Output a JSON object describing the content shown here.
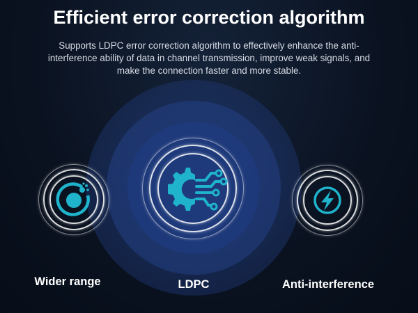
{
  "header": {
    "title": "Efficient error correction algorithm",
    "description": "Supports LDPC error correction algorithm to effectively enhance the anti-interference ability of data in channel transmission, improve weak signals, and make the connection faster and more stable."
  },
  "features": [
    {
      "label": "Wider range",
      "icon": "orbit-icon"
    },
    {
      "label": "LDPC",
      "icon": "gear-circuit-icon"
    },
    {
      "label": "Anti-interference",
      "icon": "lightning-icon"
    }
  ],
  "colors": {
    "accent": "#1fb3cc",
    "background": "#0a1220",
    "halo": "#1e3a78"
  }
}
